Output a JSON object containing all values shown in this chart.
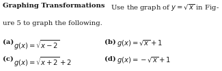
{
  "bg_color": "#ffffff",
  "text_color": "#1a1a1a",
  "fontsize": 7.2,
  "line1_bold": "Graphing Transformations",
  "line1_normal": "  Use the graph of ",
  "line1_math": "$y = \\sqrt{x}$",
  "line1_end": " in Fig-",
  "line2": "ure 5 to graph the following.",
  "a_label": "(a)",
  "a_expr": "$g(x) = \\sqrt{x-2}$",
  "b_label": "(b)",
  "b_expr": "$g(x) = \\sqrt{x}+1$",
  "c_label": "(c)",
  "c_expr": "$g(x) = \\sqrt{x+2}+2$",
  "d_label": "(d)",
  "d_expr": "$g(x) = -\\sqrt{x}+1$",
  "fig_width": 3.09,
  "fig_height": 0.68
}
